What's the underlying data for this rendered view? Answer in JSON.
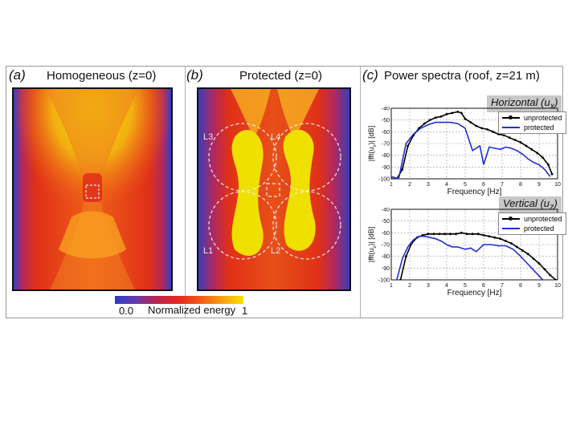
{
  "panel_a": {
    "label": "(a)",
    "title": "Homogeneous (z=0)"
  },
  "panel_b": {
    "label": "(b)",
    "title": "Protected (z=0)",
    "zones": [
      "L3",
      "L4",
      "L1",
      "L2"
    ]
  },
  "panel_c": {
    "label": "(c)",
    "title": "Power spectra (roof, z=21 m)"
  },
  "colorbar": {
    "min_label": "0.0",
    "label": "Normalized energy",
    "max_label": "1"
  },
  "colors": {
    "unprotected": "#000000",
    "protected": "#1f2fd0",
    "grid": "#9a9a9a"
  },
  "chart_data": [
    {
      "type": "line",
      "box_label": "Horizontal (u",
      "box_sub": "x",
      "box_close": ")",
      "xlabel": "Frequency [Hz]",
      "ylabel": "|fft(u",
      "ylabel_sub": "x",
      "ylabel_rest": ")| [dB]",
      "xlim": [
        1,
        10
      ],
      "ylim": [
        -100,
        -40
      ],
      "xticks": [
        1,
        2,
        3,
        4,
        5,
        6,
        7,
        8,
        9,
        10
      ],
      "yticks": [
        -100,
        -90,
        -80,
        -70,
        -60,
        -50,
        -40
      ],
      "series": [
        {
          "name": "unprotected",
          "markers": true,
          "x": [
            1.0,
            1.3,
            1.6,
            1.9,
            2.2,
            2.5,
            2.8,
            3.1,
            3.4,
            3.7,
            4.0,
            4.3,
            4.6,
            4.8,
            5.0,
            5.3,
            5.6,
            5.9,
            6.2,
            6.5,
            6.8,
            7.1,
            7.4,
            7.7,
            8.0,
            8.3,
            8.6,
            8.9,
            9.2,
            9.5,
            9.7
          ],
          "y": [
            -100,
            -100,
            -92,
            -72,
            -63,
            -57,
            -53,
            -50,
            -48,
            -47,
            -45,
            -44,
            -43,
            -44,
            -49,
            -52,
            -55,
            -57,
            -58,
            -60,
            -62,
            -63,
            -65,
            -67,
            -69,
            -72,
            -75,
            -78,
            -82,
            -88,
            -96
          ]
        },
        {
          "name": "protected",
          "markers": false,
          "x": [
            1.0,
            1.4,
            1.8,
            2.2,
            2.6,
            3.0,
            3.4,
            3.8,
            4.2,
            4.6,
            5.0,
            5.4,
            5.8,
            6.0,
            6.3,
            6.6,
            6.9,
            7.2,
            7.5,
            7.8,
            8.1,
            8.4,
            8.7,
            9.0,
            9.3,
            9.6
          ],
          "y": [
            -98,
            -100,
            -70,
            -62,
            -57,
            -54,
            -52,
            -52,
            -52,
            -53,
            -57,
            -76,
            -72,
            -88,
            -73,
            -74,
            -75,
            -73,
            -74,
            -76,
            -79,
            -83,
            -86,
            -88,
            -92,
            -98
          ]
        }
      ]
    },
    {
      "type": "line",
      "box_label": "Vertical (u",
      "box_sub": "z",
      "box_close": ")",
      "xlabel": "Frequency [Hz]",
      "ylabel": "|fft(u",
      "ylabel_sub": "z",
      "ylabel_rest": ")| [dB]",
      "xlim": [
        1,
        10
      ],
      "ylim": [
        -100,
        -40
      ],
      "xticks": [
        1,
        2,
        3,
        4,
        5,
        6,
        7,
        8,
        9,
        10
      ],
      "yticks": [
        -100,
        -90,
        -80,
        -70,
        -60,
        -50,
        -40
      ],
      "series": [
        {
          "name": "unprotected",
          "markers": true,
          "x": [
            1.5,
            1.8,
            2.1,
            2.4,
            2.7,
            3.0,
            3.3,
            3.6,
            3.9,
            4.2,
            4.5,
            4.8,
            5.1,
            5.4,
            5.7,
            6.0,
            6.3,
            6.6,
            6.9,
            7.2,
            7.5,
            7.8,
            8.1,
            8.4,
            8.7,
            9.0,
            9.3,
            9.6,
            9.9
          ],
          "y": [
            -100,
            -80,
            -69,
            -64,
            -62,
            -61,
            -61,
            -61,
            -61,
            -61,
            -61,
            -60,
            -61,
            -61,
            -61,
            -62,
            -63,
            -64,
            -65,
            -67,
            -69,
            -72,
            -75,
            -78,
            -82,
            -86,
            -91,
            -96,
            -100
          ]
        },
        {
          "name": "protected",
          "markers": false,
          "x": [
            1.3,
            1.6,
            1.9,
            2.2,
            2.5,
            2.8,
            3.1,
            3.4,
            3.7,
            4.0,
            4.3,
            4.6,
            5.0,
            5.3,
            5.6,
            6.0,
            6.4,
            6.8,
            7.2,
            7.6,
            8.0,
            8.3,
            8.6,
            8.9,
            9.2
          ],
          "y": [
            -100,
            -82,
            -72,
            -66,
            -63,
            -63,
            -64,
            -65,
            -67,
            -70,
            -72,
            -72,
            -74,
            -73,
            -76,
            -70,
            -70,
            -71,
            -71,
            -74,
            -80,
            -85,
            -90,
            -95,
            -100
          ]
        }
      ]
    }
  ]
}
